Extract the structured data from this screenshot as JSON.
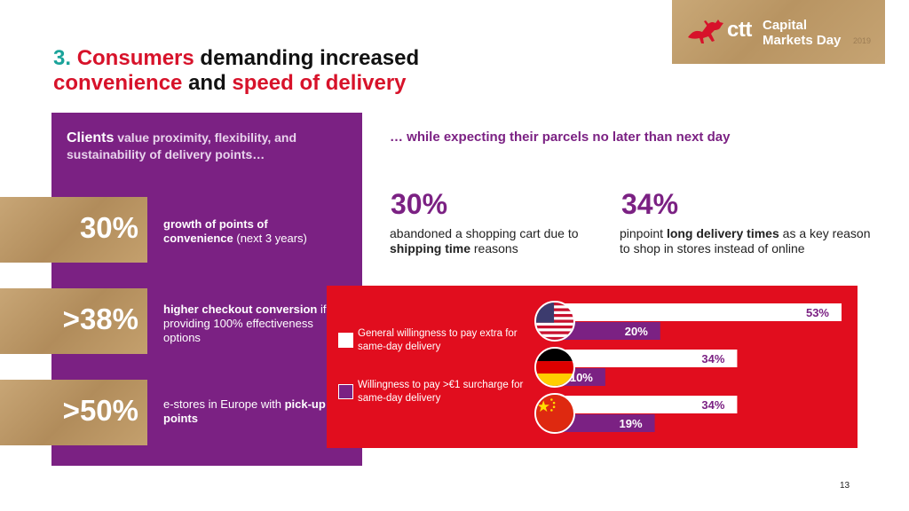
{
  "title": {
    "number": "3.",
    "part1": "Consumers",
    "part2": " demanding increased",
    "part3": "convenience",
    "part4": " and ",
    "part5": "speed of delivery"
  },
  "brand": {
    "logo": "ctt",
    "line1": "Capital",
    "line2": "Markets Day",
    "year": "2019"
  },
  "left_panel": {
    "heading_bold": "Clients",
    "heading_rest": " value proximity, flexibility, and sustainability of delivery points…",
    "stats": [
      {
        "value": "30%",
        "text_bold": "growth of points of convenience",
        "text_rest": " (next 3 years)"
      },
      {
        "value": ">38%",
        "text_bold": "higher checkout conversion",
        "text_rest": " if providing 100% effectiveness options"
      },
      {
        "value": ">50%",
        "text_pre": "e-stores in Europe with ",
        "text_bold": "pick-up points"
      }
    ]
  },
  "right": {
    "subheading": "… while expecting their parcels no later than next day",
    "fact1": {
      "value": "30%",
      "text_pre": "abandoned a shopping cart due to ",
      "text_bold": "shipping time",
      "text_post": " reasons"
    },
    "fact2": {
      "value": "34%",
      "text_pre": "pinpoint ",
      "text_bold": "long delivery times",
      "text_post": " as a key reason to shop in stores instead of online"
    }
  },
  "colors": {
    "purple": "#7b2183",
    "red": "#e10d1e",
    "teal": "#1aa39a",
    "white": "#ffffff"
  },
  "icons": {
    "usa": "usa-flag-icon",
    "germany": "germany-flag-icon",
    "china": "china-flag-icon"
  },
  "chart_data": {
    "type": "bar",
    "orientation": "horizontal",
    "categories": [
      "USA",
      "Germany",
      "China"
    ],
    "series": [
      {
        "name": "General willingness to pay extra for same-day delivery",
        "values": [
          53,
          34,
          34
        ],
        "labels": [
          "53%",
          "34%",
          "34%"
        ],
        "color": "#ffffff"
      },
      {
        "name": "Willingness to pay >€1 surcharge for same-day delivery",
        "values": [
          20,
          10,
          19
        ],
        "labels": [
          "20%",
          "10%",
          "19%"
        ],
        "color": "#7b2183"
      }
    ],
    "xlim": [
      0,
      53
    ],
    "grid": false,
    "legend": "left"
  },
  "page_number": "13"
}
